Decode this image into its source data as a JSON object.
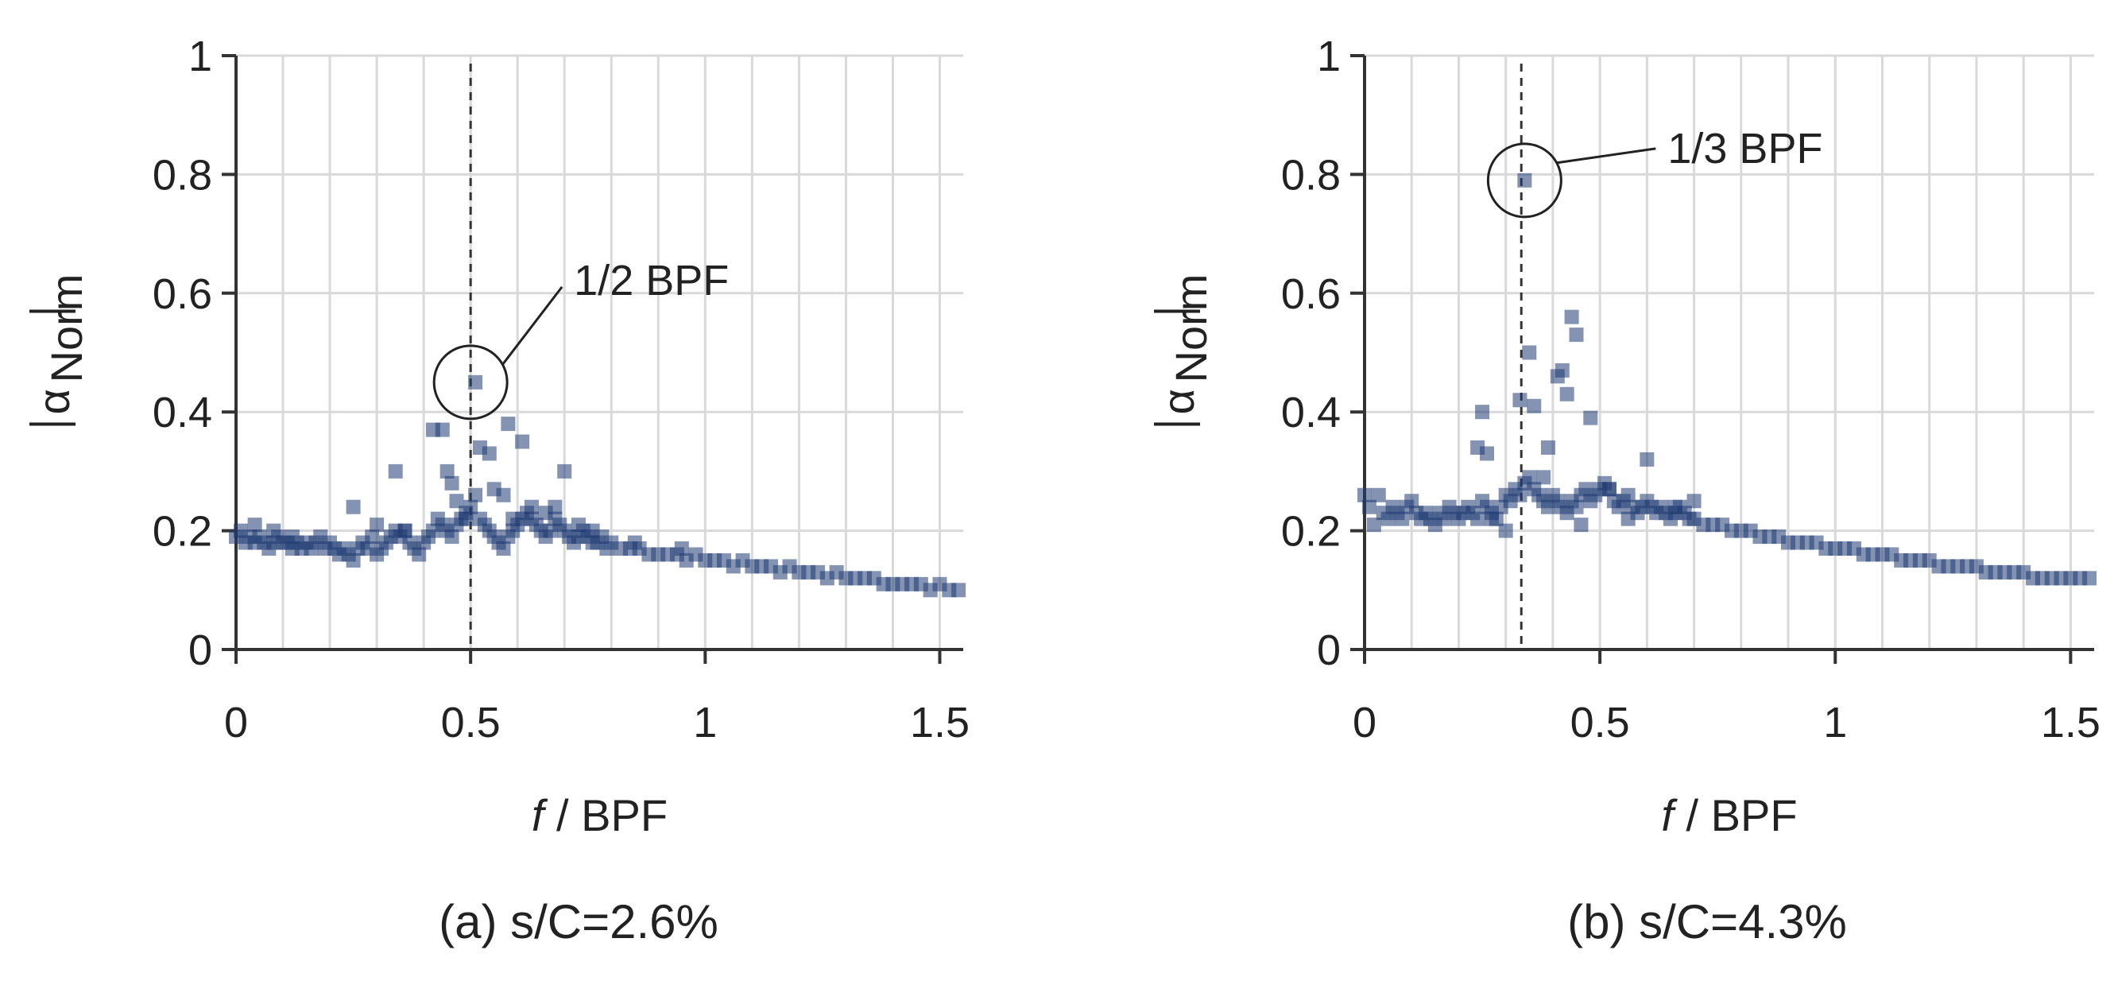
{
  "chart_data": [
    {
      "type": "scatter",
      "caption": "(a) s/C=2.6%",
      "xlabel_italic": "f",
      "xlabel_rest": " / BPF",
      "ylabel_main": "α",
      "ylabel_sub": "Norm",
      "xlim": [
        0,
        1.55
      ],
      "ylim": [
        0,
        1
      ],
      "xticks": [
        "0",
        "0.5",
        "1",
        "1.5"
      ],
      "xtick_values": [
        0,
        0.5,
        1,
        1.5
      ],
      "yticks": [
        "0",
        "0.2",
        "0.4",
        "0.6",
        "0.8",
        "1"
      ],
      "ytick_values": [
        0,
        0.2,
        0.4,
        0.6,
        0.8,
        1
      ],
      "marker_color": "#1f3a73",
      "reference_line_x": 0.5,
      "annotation": {
        "text": "1/2 BPF",
        "x": 0.5,
        "y": 0.45
      },
      "x": [
        0.0,
        0.01,
        0.02,
        0.03,
        0.04,
        0.05,
        0.06,
        0.07,
        0.08,
        0.09,
        0.1,
        0.11,
        0.12,
        0.13,
        0.14,
        0.15,
        0.16,
        0.17,
        0.18,
        0.19,
        0.2,
        0.21,
        0.22,
        0.23,
        0.24,
        0.25,
        0.26,
        0.27,
        0.28,
        0.29,
        0.3,
        0.31,
        0.32,
        0.33,
        0.34,
        0.35,
        0.36,
        0.37,
        0.38,
        0.39,
        0.4,
        0.41,
        0.42,
        0.43,
        0.44,
        0.45,
        0.46,
        0.47,
        0.48,
        0.49,
        0.5,
        0.51,
        0.52,
        0.53,
        0.54,
        0.55,
        0.56,
        0.57,
        0.58,
        0.59,
        0.6,
        0.61,
        0.62,
        0.63,
        0.64,
        0.65,
        0.66,
        0.67,
        0.68,
        0.69,
        0.7,
        0.71,
        0.72,
        0.73,
        0.74,
        0.75,
        0.76,
        0.77,
        0.78,
        0.79,
        0.8,
        0.82,
        0.84,
        0.86,
        0.88,
        0.9,
        0.92,
        0.94,
        0.96,
        0.98,
        1.0,
        1.02,
        1.04,
        1.06,
        1.08,
        1.1,
        1.12,
        1.14,
        1.16,
        1.18,
        1.2,
        1.22,
        1.24,
        1.26,
        1.28,
        1.3,
        1.32,
        1.34,
        1.36,
        1.38,
        1.4,
        1.42,
        1.44,
        1.46,
        1.48,
        1.5,
        1.52,
        1.54,
        0.34,
        0.42,
        0.44,
        0.45,
        0.52,
        0.54,
        0.58,
        0.61,
        0.7,
        0.25,
        0.47,
        0.49,
        0.55,
        0.57,
        0.63,
        0.66,
        0.04,
        0.08,
        0.12,
        0.3,
        0.36,
        0.46,
        0.51,
        0.59,
        0.68,
        0.73,
        0.76,
        0.85,
        0.95
      ],
      "y": [
        0.19,
        0.2,
        0.18,
        0.19,
        0.18,
        0.19,
        0.18,
        0.17,
        0.18,
        0.19,
        0.18,
        0.18,
        0.17,
        0.18,
        0.17,
        0.18,
        0.17,
        0.18,
        0.19,
        0.17,
        0.18,
        0.17,
        0.16,
        0.17,
        0.16,
        0.15,
        0.17,
        0.18,
        0.17,
        0.19,
        0.16,
        0.17,
        0.18,
        0.19,
        0.2,
        0.19,
        0.2,
        0.18,
        0.17,
        0.16,
        0.18,
        0.19,
        0.2,
        0.22,
        0.21,
        0.2,
        0.19,
        0.21,
        0.22,
        0.23,
        0.24,
        0.26,
        0.22,
        0.21,
        0.2,
        0.19,
        0.18,
        0.17,
        0.19,
        0.2,
        0.21,
        0.22,
        0.23,
        0.22,
        0.21,
        0.2,
        0.19,
        0.2,
        0.22,
        0.21,
        0.2,
        0.19,
        0.18,
        0.19,
        0.2,
        0.19,
        0.18,
        0.18,
        0.19,
        0.17,
        0.18,
        0.17,
        0.17,
        0.17,
        0.16,
        0.16,
        0.16,
        0.16,
        0.15,
        0.16,
        0.15,
        0.15,
        0.15,
        0.14,
        0.15,
        0.14,
        0.14,
        0.14,
        0.13,
        0.14,
        0.13,
        0.13,
        0.13,
        0.12,
        0.13,
        0.12,
        0.12,
        0.12,
        0.12,
        0.11,
        0.11,
        0.11,
        0.11,
        0.11,
        0.1,
        0.11,
        0.1,
        0.1,
        0.3,
        0.37,
        0.37,
        0.3,
        0.34,
        0.33,
        0.38,
        0.35,
        0.3,
        0.24,
        0.25,
        0.22,
        0.27,
        0.26,
        0.24,
        0.23,
        0.21,
        0.2,
        0.19,
        0.21,
        0.2,
        0.28,
        0.45,
        0.22,
        0.24,
        0.21,
        0.2,
        0.18,
        0.17
      ]
    },
    {
      "type": "scatter",
      "caption": "(b) s/C=4.3%",
      "xlabel_italic": "f",
      "xlabel_rest": " / BPF",
      "ylabel_main": "α",
      "ylabel_sub": "Norm",
      "xlim": [
        0,
        1.55
      ],
      "ylim": [
        0,
        1
      ],
      "xticks": [
        "0",
        "0.5",
        "1",
        "1.5"
      ],
      "xtick_values": [
        0,
        0.5,
        1,
        1.5
      ],
      "yticks": [
        "0",
        "0.2",
        "0.4",
        "0.6",
        "0.8",
        "1"
      ],
      "ytick_values": [
        0,
        0.2,
        0.4,
        0.6,
        0.8,
        1
      ],
      "marker_color": "#1f3a73",
      "reference_line_x": 0.333,
      "annotation": {
        "text": "1/3 BPF",
        "x": 0.34,
        "y": 0.79
      },
      "x": [
        0.0,
        0.01,
        0.02,
        0.03,
        0.04,
        0.05,
        0.06,
        0.07,
        0.08,
        0.09,
        0.1,
        0.11,
        0.12,
        0.13,
        0.14,
        0.15,
        0.16,
        0.17,
        0.18,
        0.19,
        0.2,
        0.21,
        0.22,
        0.23,
        0.24,
        0.25,
        0.26,
        0.27,
        0.28,
        0.29,
        0.3,
        0.31,
        0.32,
        0.33,
        0.34,
        0.35,
        0.36,
        0.37,
        0.38,
        0.39,
        0.4,
        0.41,
        0.42,
        0.43,
        0.44,
        0.45,
        0.46,
        0.47,
        0.48,
        0.49,
        0.5,
        0.51,
        0.52,
        0.53,
        0.54,
        0.55,
        0.56,
        0.57,
        0.58,
        0.59,
        0.6,
        0.61,
        0.62,
        0.63,
        0.64,
        0.65,
        0.66,
        0.67,
        0.68,
        0.69,
        0.7,
        0.72,
        0.74,
        0.76,
        0.78,
        0.8,
        0.82,
        0.84,
        0.86,
        0.88,
        0.9,
        0.92,
        0.94,
        0.96,
        0.98,
        1.0,
        1.02,
        1.04,
        1.06,
        1.08,
        1.1,
        1.12,
        1.14,
        1.16,
        1.18,
        1.2,
        1.22,
        1.24,
        1.26,
        1.28,
        1.3,
        1.32,
        1.34,
        1.36,
        1.38,
        1.4,
        1.42,
        1.44,
        1.46,
        1.48,
        1.5,
        1.52,
        1.54,
        0.25,
        0.26,
        0.24,
        0.33,
        0.35,
        0.34,
        0.41,
        0.42,
        0.43,
        0.44,
        0.45,
        0.48,
        0.6,
        0.36,
        0.39,
        0.27,
        0.3,
        0.52,
        0.46,
        0.38,
        0.56,
        0.66,
        0.7
      ],
      "y": [
        0.26,
        0.24,
        0.21,
        0.26,
        0.23,
        0.22,
        0.24,
        0.23,
        0.22,
        0.24,
        0.25,
        0.23,
        0.22,
        0.23,
        0.22,
        0.21,
        0.23,
        0.22,
        0.24,
        0.23,
        0.22,
        0.23,
        0.24,
        0.23,
        0.22,
        0.25,
        0.24,
        0.23,
        0.22,
        0.24,
        0.26,
        0.25,
        0.27,
        0.26,
        0.28,
        0.29,
        0.27,
        0.26,
        0.25,
        0.24,
        0.26,
        0.25,
        0.24,
        0.23,
        0.25,
        0.24,
        0.26,
        0.27,
        0.25,
        0.26,
        0.27,
        0.28,
        0.27,
        0.25,
        0.24,
        0.25,
        0.26,
        0.24,
        0.23,
        0.24,
        0.25,
        0.24,
        0.23,
        0.24,
        0.23,
        0.22,
        0.23,
        0.24,
        0.23,
        0.22,
        0.22,
        0.21,
        0.21,
        0.21,
        0.2,
        0.2,
        0.2,
        0.19,
        0.19,
        0.19,
        0.18,
        0.18,
        0.18,
        0.18,
        0.17,
        0.17,
        0.17,
        0.17,
        0.16,
        0.16,
        0.16,
        0.16,
        0.15,
        0.15,
        0.15,
        0.15,
        0.14,
        0.14,
        0.14,
        0.14,
        0.14,
        0.13,
        0.13,
        0.13,
        0.13,
        0.13,
        0.12,
        0.12,
        0.12,
        0.12,
        0.12,
        0.12,
        0.12,
        0.4,
        0.33,
        0.34,
        0.42,
        0.5,
        0.79,
        0.46,
        0.47,
        0.43,
        0.56,
        0.53,
        0.39,
        0.32,
        0.41,
        0.34,
        0.22,
        0.2,
        0.27,
        0.21,
        0.29,
        0.22,
        0.24,
        0.25
      ]
    }
  ]
}
